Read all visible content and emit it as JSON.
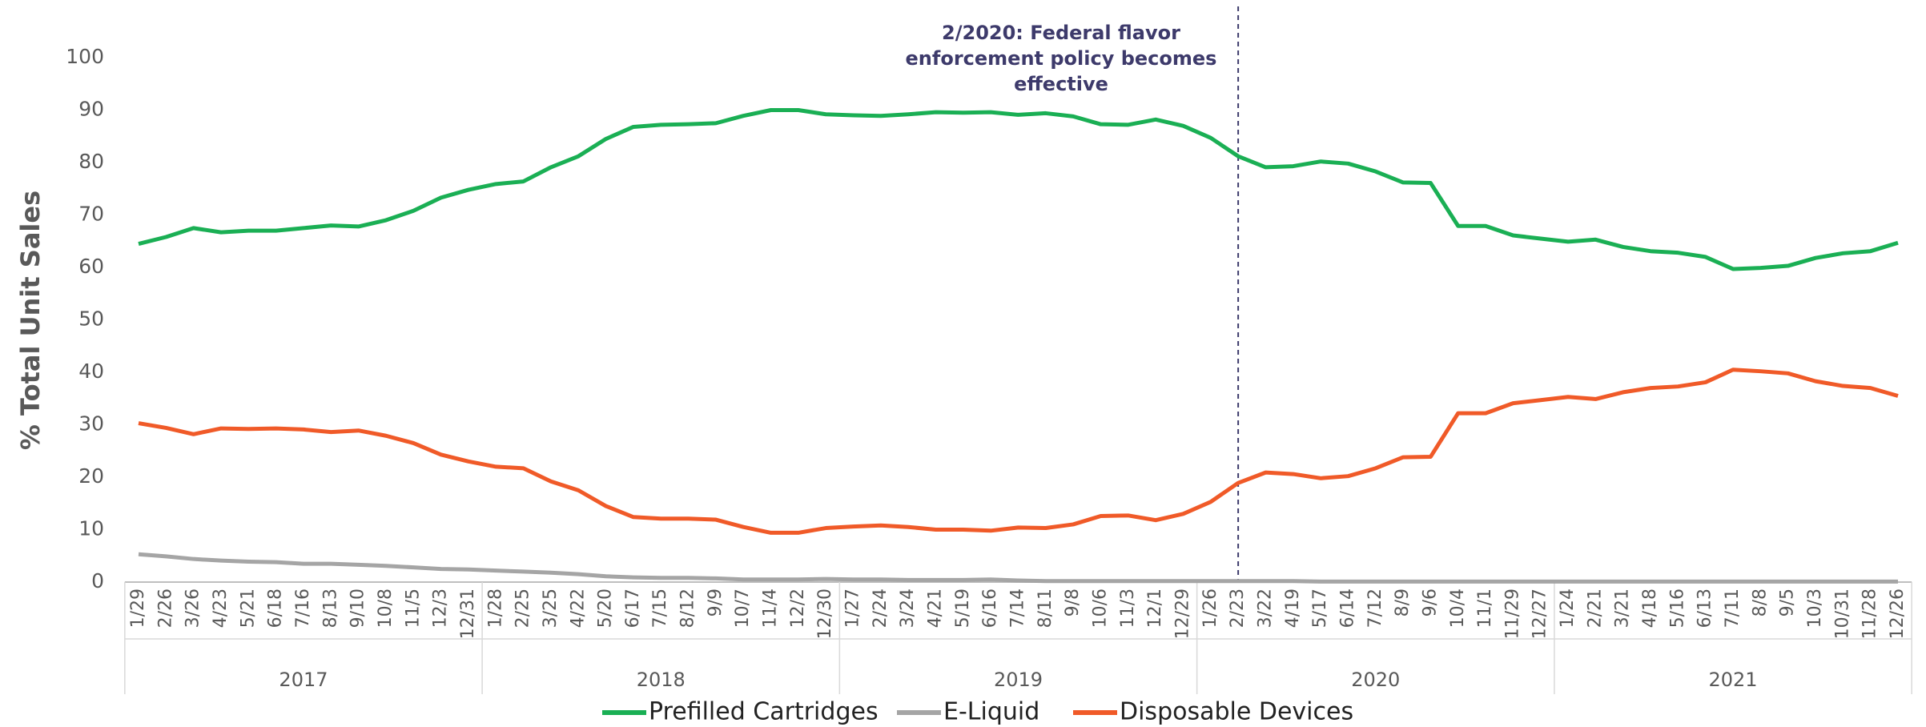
{
  "chart_data": {
    "type": "line",
    "y_label": "% Total Unit Sales",
    "ylim": [
      0,
      100
    ],
    "yticks": [
      0,
      10,
      20,
      30,
      40,
      50,
      60,
      70,
      80,
      90,
      100
    ],
    "categories": [
      "1/29",
      "2/26",
      "3/26",
      "4/23",
      "5/21",
      "6/18",
      "7/16",
      "8/13",
      "9/10",
      "10/8",
      "11/5",
      "12/3",
      "12/31",
      "1/28",
      "2/25",
      "3/25",
      "4/22",
      "5/20",
      "6/17",
      "7/15",
      "8/12",
      "9/9",
      "10/7",
      "11/4",
      "12/2",
      "12/30",
      "1/27",
      "2/24",
      "3/24",
      "4/21",
      "5/19",
      "6/16",
      "7/14",
      "8/11",
      "9/8",
      "10/6",
      "11/3",
      "12/1",
      "12/29",
      "1/26",
      "2/23",
      "3/22",
      "4/19",
      "5/17",
      "6/14",
      "7/12",
      "8/9",
      "9/6",
      "10/4",
      "11/1",
      "11/29",
      "12/27",
      "1/24",
      "2/21",
      "3/21",
      "4/18",
      "5/16",
      "6/13",
      "7/11",
      "8/8",
      "9/5",
      "10/3",
      "10/31",
      "11/28",
      "12/26"
    ],
    "years": [
      "2017",
      "2018",
      "2019",
      "2020",
      "2021"
    ],
    "series": [
      {
        "name": "Prefilled Cartridges",
        "color": "#1aaf54",
        "values": [
          64.5,
          65.8,
          67.5,
          66.7,
          67,
          67,
          67.5,
          68,
          67.8,
          69,
          70.8,
          73.3,
          74.8,
          75.9,
          76.4,
          79.1,
          81.2,
          84.5,
          86.8,
          87.2,
          87.3,
          87.5,
          88.9,
          90,
          90,
          89.2,
          89,
          88.9,
          89.2,
          89.6,
          89.5,
          89.6,
          89.1,
          89.4,
          88.8,
          87.3,
          87.2,
          88.2,
          87,
          84.7,
          81.2,
          79.1,
          79.3,
          80.2,
          79.8,
          78.3,
          76.2,
          76.1,
          67.9,
          67.9,
          66.1,
          65.5,
          64.9,
          65.3,
          63.9,
          63.1,
          62.8,
          62,
          59.7,
          59.9,
          60.3,
          61.8,
          62.7,
          63.1,
          64.7
        ]
      },
      {
        "name": "E-Liquid",
        "color": "#a5a5a5",
        "values": [
          5.3,
          4.9,
          4.4,
          4.1,
          3.9,
          3.8,
          3.5,
          3.5,
          3.3,
          3.1,
          2.8,
          2.5,
          2.4,
          2.2,
          2,
          1.8,
          1.5,
          1.1,
          0.9,
          0.8,
          0.8,
          0.7,
          0.5,
          0.5,
          0.5,
          0.6,
          0.5,
          0.5,
          0.4,
          0.4,
          0.4,
          0.5,
          0.3,
          0.2,
          0.2,
          0.2,
          0.2,
          0.2,
          0.2,
          0.2,
          0.2,
          0.2,
          0.2,
          0.1,
          0.1,
          0.1,
          0.1,
          0.1,
          0.1,
          0.1,
          0.1,
          0.1,
          0.1,
          0.1,
          0.1,
          0.1,
          0.1,
          0.1,
          0.1,
          0.1,
          0.1,
          0.1,
          0.1,
          0.1,
          0.1
        ]
      },
      {
        "name": "Disposable Devices",
        "color": "#f05a28",
        "values": [
          30.3,
          29.4,
          28.2,
          29.3,
          29.2,
          29.3,
          29.1,
          28.6,
          28.9,
          27.9,
          26.5,
          24.3,
          23,
          22,
          21.7,
          19.2,
          17.5,
          14.5,
          12.4,
          12.1,
          12.1,
          11.9,
          10.5,
          9.4,
          9.4,
          10.3,
          10.6,
          10.8,
          10.5,
          10,
          10,
          9.8,
          10.4,
          10.3,
          11,
          12.6,
          12.7,
          11.8,
          13,
          15.3,
          18.9,
          20.9,
          20.6,
          19.8,
          20.2,
          21.7,
          23.8,
          23.9,
          32.2,
          32.2,
          34.1,
          34.7,
          35.3,
          34.9,
          36.2,
          37,
          37.3,
          38.1,
          40.5,
          40.2,
          39.8,
          38.3,
          37.4,
          37,
          35.5
        ]
      }
    ],
    "annotation": {
      "x": "2/23",
      "lines": [
        "2/2020: Federal flavor",
        "enforcement policy becomes",
        "effective"
      ]
    },
    "grid": false
  }
}
